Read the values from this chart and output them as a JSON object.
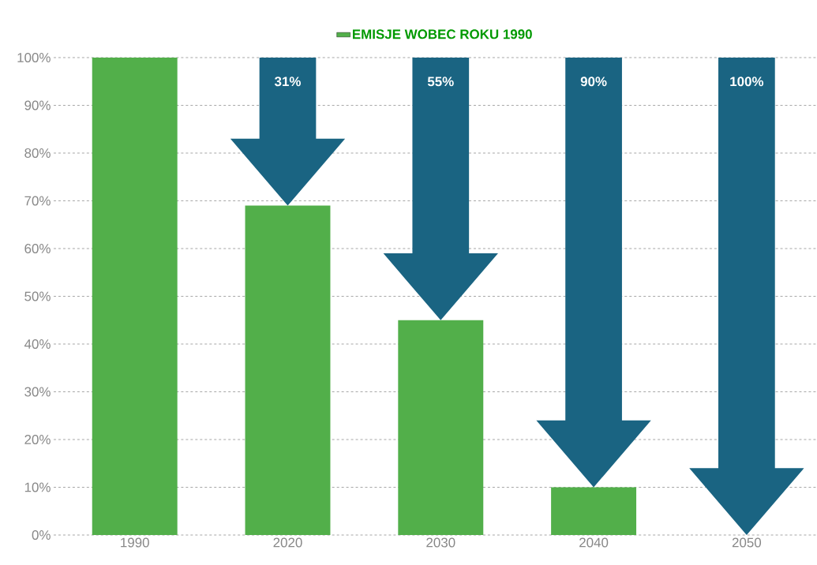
{
  "chart_data": {
    "type": "bar",
    "categories": [
      "1990",
      "2020",
      "2030",
      "2040",
      "2050"
    ],
    "series": [
      {
        "name": "EMISJE WOBEC ROKU 1990",
        "color": "#52af4a",
        "values": [
          100,
          69,
          45,
          10,
          0
        ]
      }
    ],
    "ylim": [
      0,
      100
    ],
    "yticks": [
      {
        "value": 0,
        "label": "0%"
      },
      {
        "value": 10,
        "label": "10%"
      },
      {
        "value": 20,
        "label": "20%"
      },
      {
        "value": 30,
        "label": "30%"
      },
      {
        "value": 40,
        "label": "40%"
      },
      {
        "value": 50,
        "label": "50%"
      },
      {
        "value": 60,
        "label": "60%"
      },
      {
        "value": 70,
        "label": "70%"
      },
      {
        "value": 80,
        "label": "80%"
      },
      {
        "value": 90,
        "label": "90%"
      },
      {
        "value": 100,
        "label": "100%"
      }
    ],
    "grid": "y",
    "legend": "top",
    "annotations": [
      "31%",
      "55%",
      "90%",
      "100%"
    ]
  }
}
